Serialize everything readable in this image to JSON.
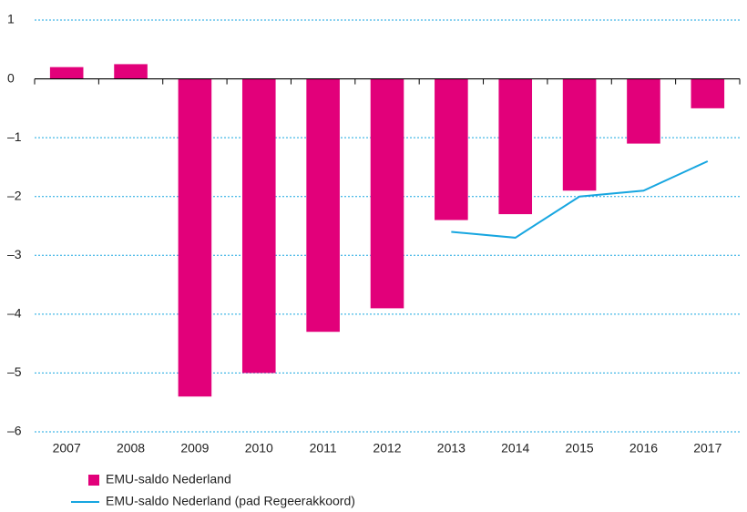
{
  "chart_data": {
    "type": "bar",
    "categories": [
      "2007",
      "2008",
      "2009",
      "2010",
      "2011",
      "2012",
      "2013",
      "2014",
      "2015",
      "2016",
      "2017"
    ],
    "series": [
      {
        "name": "EMU-saldo Nederland",
        "type": "bar",
        "color": "#e2007a",
        "values": [
          0.2,
          0.25,
          -5.4,
          -5.0,
          -4.3,
          -3.9,
          -2.4,
          -2.3,
          -1.9,
          -1.1,
          -0.5
        ]
      },
      {
        "name": "EMU-saldo Nederland (pad Regeerakkoord)",
        "type": "line",
        "color": "#17a6e0",
        "values": [
          null,
          null,
          null,
          null,
          null,
          null,
          -2.6,
          -2.7,
          -2.0,
          -1.9,
          -1.4
        ]
      }
    ],
    "ylim": [
      -6,
      1
    ],
    "yticks": [
      1,
      0,
      {
        "value": -1,
        "label": "–1"
      },
      {
        "value": -2,
        "label": "–2"
      },
      {
        "value": -3,
        "label": "–3"
      },
      {
        "value": -4,
        "label": "–4"
      },
      {
        "value": -5,
        "label": "–5"
      },
      {
        "value": -6,
        "label": "–6"
      }
    ],
    "grid": true
  }
}
